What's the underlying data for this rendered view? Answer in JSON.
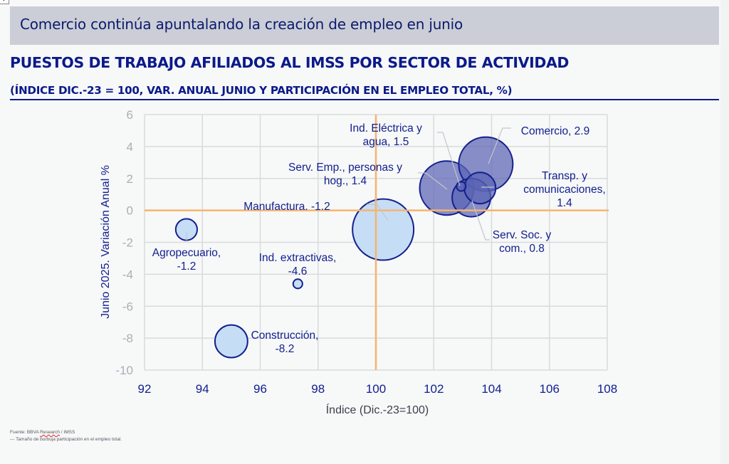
{
  "banner": {
    "title": "Comercio continúa apuntalando la creación de empleo en junio"
  },
  "corner_icon": "expand-icon",
  "chart_data": {
    "type": "scatter",
    "subtype": "bubble",
    "title": "PUESTOS DE TRABAJO AFILIADOS AL IMSS POR SECTOR DE ACTIVIDAD",
    "subtitle": "(ÍNDICE DIC.-23 = 100, VAR. ANUAL JUNIO Y PARTICIPACIÓN EN EL EMPLEO TOTAL, %)",
    "xlabel": "Índice (Dic.-23=100)",
    "ylabel": "Junio 2025. Variación Anual %",
    "xlim": [
      92,
      108
    ],
    "ylim": [
      -10,
      6
    ],
    "xticks": [
      92,
      94,
      96,
      98,
      100,
      102,
      104,
      106,
      108
    ],
    "yticks": [
      6,
      4,
      2,
      0,
      -2,
      -4,
      -6,
      -8,
      -10
    ],
    "grid": true,
    "reference_lines": {
      "x": 100,
      "y": 0,
      "color": "#f5b46e"
    },
    "colors": {
      "light_fill": "#c6ddf6",
      "dark_fill": "#5a64b4",
      "stroke": "#12208e",
      "label": "#12208e",
      "tick_y": "#a9aeb6",
      "tick_x": "#12208e",
      "grid": "#d9dadc",
      "leader": "#c3c6cc"
    },
    "series": [
      {
        "name": "Agropecuario",
        "label_lines": [
          "Agropecuario,",
          "-1.2"
        ],
        "x": 93.45,
        "y": -1.2,
        "share": 3.2,
        "style": "light"
      },
      {
        "name": "Ind. extractivas",
        "label_lines": [
          "Ind. extractivas,",
          "-4.6"
        ],
        "x": 97.3,
        "y": -4.6,
        "share": 0.6,
        "style": "light"
      },
      {
        "name": "Construcción",
        "label_lines": [
          "Construcción,",
          "-8.2"
        ],
        "x": 95.0,
        "y": -8.2,
        "share": 7.4,
        "style": "light"
      },
      {
        "name": "Manufactura",
        "label_lines": [
          "Manufactura.  -1.2"
        ],
        "x": 100.25,
        "y": -1.2,
        "share": 26.0,
        "style": "light"
      },
      {
        "name": "Serv. Emp., personas y hog.",
        "label_lines": [
          "Serv. Emp., personas y",
          "hog., 1.4"
        ],
        "x": 102.45,
        "y": 1.4,
        "share": 20.3,
        "style": "dark"
      },
      {
        "name": "Comercio",
        "label_lines": [
          "Comercio, 2.9"
        ],
        "x": 103.8,
        "y": 2.9,
        "share": 20.3,
        "style": "dark"
      },
      {
        "name": "Serv. Soc. y com.",
        "label_lines": [
          "Serv. Soc. y",
          "com., 0.8"
        ],
        "x": 103.3,
        "y": 0.8,
        "share": 10.2,
        "style": "dark"
      },
      {
        "name": "Transp. y comunicaciones",
        "label_lines": [
          "Transp. y",
          "comunicaciones,",
          "1.4"
        ],
        "x": 103.6,
        "y": 1.4,
        "share": 6.8,
        "style": "dark"
      },
      {
        "name": "Ind. Eléctrica y agua",
        "label_lines": [
          "Ind. Eléctrica y",
          "agua, 1.5"
        ],
        "x": 102.95,
        "y": 1.5,
        "share": 0.6,
        "style": "dark"
      }
    ]
  },
  "footer": {
    "source_prefix": "Fuente: BBVA ",
    "source_word": "Research",
    "source_suffix": " / IMSS",
    "note": "---  Tamaño de burbuja participación en el empleo total."
  }
}
